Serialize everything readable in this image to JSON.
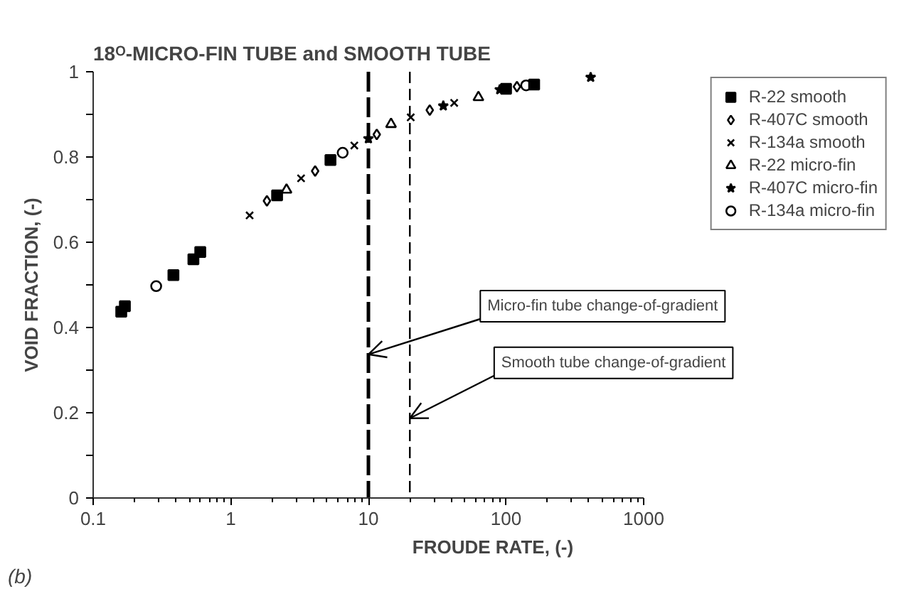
{
  "chart_data": {
    "type": "scatter",
    "title": "18ᴼ-MICRO-FIN TUBE and SMOOTH TUBE",
    "xlabel": "FROUDE RATE, (-)",
    "ylabel": "VOID FRACTION, (-)",
    "log": "x",
    "grid": false,
    "legend": "top right",
    "xlim": [
      0.1,
      1000
    ],
    "xticks": [
      {
        "value": 0.1,
        "label": "0.1"
      },
      1,
      10,
      100,
      1000
    ],
    "ylim": [
      0,
      1
    ],
    "yticks": [
      0,
      {
        "value": 0.1,
        "label": null
      },
      0.2,
      {
        "value": 0.3,
        "label": null
      },
      0.4,
      {
        "value": 0.5,
        "label": null
      },
      0.6,
      {
        "value": 0.7,
        "label": null
      },
      0.8,
      {
        "value": 0.9,
        "label": null
      },
      1
    ],
    "series": [
      {
        "name": "R-22 smooth",
        "marker": "square",
        "color": "#000000",
        "x": [
          0.16,
          0.17,
          0.383,
          0.535,
          0.6,
          2.17,
          5.3,
          100,
          160
        ],
        "values": [
          0.437,
          0.45,
          0.523,
          0.56,
          0.577,
          0.71,
          0.793,
          0.96,
          0.97
        ]
      },
      {
        "name": "R-407C smooth",
        "marker": "diamond",
        "color": "#000000",
        "x": [
          1.83,
          4.1,
          11.5,
          27.9,
          120
        ],
        "values": [
          0.697,
          0.767,
          0.853,
          0.91,
          0.965
        ]
      },
      {
        "name": "R-134a smooth",
        "marker": "cross",
        "color": "#000000",
        "x": [
          1.37,
          3.24,
          7.9,
          20.3,
          42
        ],
        "values": [
          0.663,
          0.75,
          0.827,
          0.893,
          0.927
        ]
      },
      {
        "name": "R-22 micro-fin",
        "marker": "triangle",
        "color": "#000000",
        "x": [
          2.54,
          14.6,
          63
        ],
        "values": [
          0.723,
          0.877,
          0.94
        ]
      },
      {
        "name": "R-407C micro-fin",
        "marker": "star",
        "color": "#000000",
        "x": [
          10,
          35,
          90,
          412
        ],
        "values": [
          0.843,
          0.92,
          0.958,
          0.987
        ]
      },
      {
        "name": "R-134a micro-fin",
        "marker": "circle",
        "color": "#000000",
        "x": [
          0.287,
          6.5,
          140
        ],
        "values": [
          0.497,
          0.81,
          0.968
        ]
      }
    ],
    "ref_lines": [
      {
        "axis": "x",
        "value": 10,
        "line_style": "dashed",
        "color": "#000000"
      },
      {
        "axis": "x",
        "value": 20,
        "line_style": "dashed",
        "color": "#000000"
      }
    ],
    "annotations": [
      {
        "text": "Micro-fin tube change-of-gradient",
        "x": 10,
        "y": 0.337
      },
      {
        "text": "Smooth tube change-of-gradient",
        "x": 20,
        "y": 0.187
      },
      "(b)"
    ]
  }
}
